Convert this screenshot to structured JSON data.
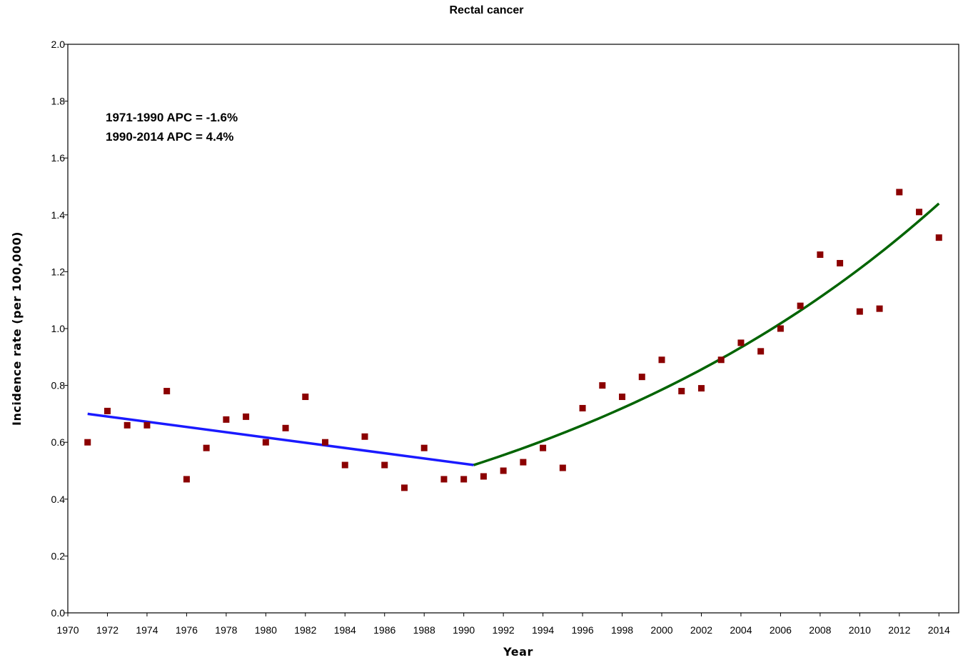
{
  "chart_data": {
    "type": "scatter",
    "title": "Rectal cancer",
    "xlabel": "Year",
    "ylabel": "Incidence rate (per 100,000)",
    "xlim": [
      1970,
      2015
    ],
    "ylim": [
      0,
      2.0
    ],
    "x_ticks": [
      1970,
      1972,
      1974,
      1976,
      1978,
      1980,
      1982,
      1984,
      1986,
      1988,
      1990,
      1992,
      1994,
      1996,
      1998,
      2000,
      2002,
      2004,
      2006,
      2008,
      2010,
      2012,
      2014
    ],
    "y_ticks": [
      "0.0",
      "0.2",
      "0.4",
      "0.6",
      "0.8",
      "1.0",
      "1.2",
      "1.4",
      "1.6",
      "1.8",
      "2.0"
    ],
    "grid": false,
    "annotations": [
      "1971-1990 APC = -1.6%",
      "1990-2014 APC = 4.4%"
    ],
    "points": {
      "color": "#8b0000",
      "x": [
        1971,
        1972,
        1973,
        1974,
        1975,
        1976,
        1977,
        1978,
        1979,
        1980,
        1981,
        1982,
        1983,
        1984,
        1985,
        1986,
        1987,
        1988,
        1989,
        1990,
        1991,
        1992,
        1993,
        1994,
        1995,
        1996,
        1997,
        1998,
        1999,
        2000,
        2001,
        2002,
        2003,
        2004,
        2005,
        2006,
        2007,
        2008,
        2009,
        2010,
        2011,
        2012,
        2013,
        2014
      ],
      "y": [
        0.6,
        0.71,
        0.66,
        0.66,
        0.78,
        0.47,
        0.58,
        0.68,
        0.69,
        0.6,
        0.65,
        0.76,
        0.6,
        0.52,
        0.62,
        0.52,
        0.44,
        0.58,
        0.47,
        0.47,
        0.48,
        0.5,
        0.53,
        0.58,
        0.51,
        0.72,
        0.8,
        0.76,
        0.83,
        0.89,
        0.78,
        0.79,
        0.89,
        0.95,
        0.92,
        1.0,
        1.08,
        1.26,
        1.23,
        1.06,
        1.07,
        1.48,
        1.41,
        1.32
      ]
    },
    "trend_lines": [
      {
        "color": "#1a1aff",
        "x": [
          1971,
          1990.5
        ],
        "y": [
          0.7,
          0.52
        ]
      },
      {
        "color": "#006400",
        "x": [
          1990.5,
          2014
        ],
        "y": [
          0.52,
          1.44
        ],
        "apc": 4.4
      }
    ]
  }
}
